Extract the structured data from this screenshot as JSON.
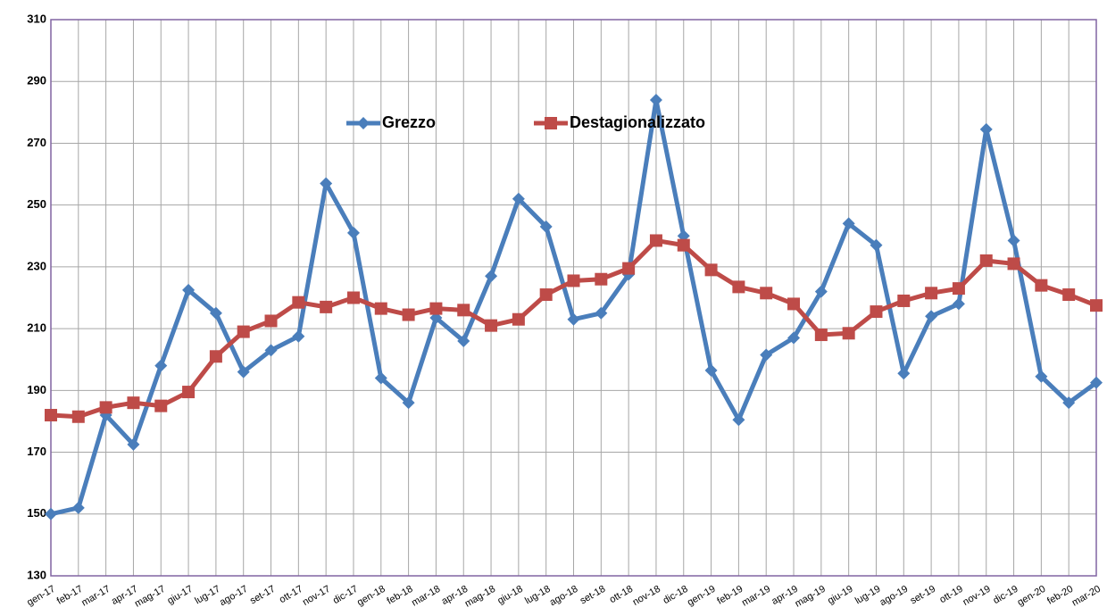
{
  "chart_data": {
    "type": "line",
    "categories": [
      "gen-17",
      "feb-17",
      "mar-17",
      "apr-17",
      "mag-17",
      "giu-17",
      "lug-17",
      "ago-17",
      "set-17",
      "ott-17",
      "nov-17",
      "dic-17",
      "gen-18",
      "feb-18",
      "mar-18",
      "apr-18",
      "mag-18",
      "giu-18",
      "lug-18",
      "ago-18",
      "set-18",
      "ott-18",
      "nov-18",
      "dic-18",
      "gen-19",
      "feb-19",
      "mar-19",
      "apr-19",
      "mag-19",
      "giu-19",
      "lug-19",
      "ago-19",
      "set-19",
      "ott-19",
      "nov-19",
      "dic-19",
      "gen-20",
      "feb-20",
      "mar-20"
    ],
    "series": [
      {
        "name": "Grezzo",
        "color": "#4a7ebb",
        "marker": "diamond",
        "values": [
          150,
          152,
          182,
          172.5,
          198,
          222.5,
          215,
          196,
          203,
          207.5,
          257,
          241,
          194,
          186,
          213.5,
          206,
          227,
          252,
          243,
          213,
          215,
          227.5,
          284,
          240,
          196.5,
          180.5,
          201.5,
          207,
          222,
          244,
          237,
          195.5,
          214,
          218,
          274.5,
          238.5,
          194.5,
          186,
          192.5
        ]
      },
      {
        "name": "Destagionalizzato",
        "color": "#be4b48",
        "marker": "square",
        "values": [
          182,
          181.5,
          184.5,
          186,
          185,
          189.5,
          201,
          209,
          212.5,
          218.5,
          217,
          220,
          216.5,
          214.5,
          216.5,
          216,
          211,
          213,
          221,
          225.5,
          226,
          229.5,
          238.5,
          237,
          229,
          223.5,
          221.5,
          218,
          208,
          208.5,
          215.5,
          219,
          221.5,
          223,
          232,
          231,
          224,
          221,
          217.5
        ]
      }
    ],
    "ylim": [
      130,
      310
    ],
    "yticks": [
      130,
      150,
      170,
      190,
      210,
      230,
      250,
      270,
      290,
      310
    ],
    "grid": true,
    "legend": "top"
  }
}
